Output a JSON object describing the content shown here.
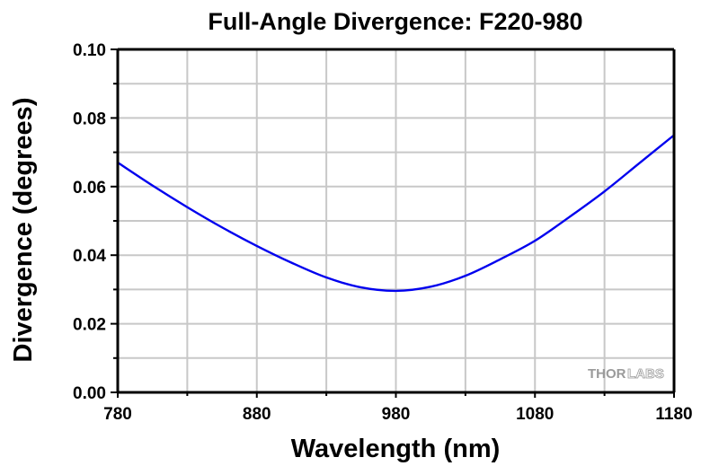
{
  "chart_data": {
    "type": "line",
    "title": "Full-Angle Divergence: F220-980",
    "xlabel": "Wavelength (nm)",
    "ylabel": "Divergence (degrees)",
    "xlim": [
      780,
      1180
    ],
    "ylim": [
      0.0,
      0.1
    ],
    "xticks": [
      780,
      880,
      980,
      1080,
      1180
    ],
    "xtick_labels": [
      "780",
      "880",
      "980",
      "1080",
      "1180"
    ],
    "x_minor_ticks": [
      830,
      930,
      1030,
      1130
    ],
    "yticks": [
      0.0,
      0.02,
      0.04,
      0.06,
      0.08,
      0.1
    ],
    "ytick_labels": [
      "0.00",
      "0.02",
      "0.04",
      "0.06",
      "0.08",
      "0.10"
    ],
    "y_minor_ticks": [
      0.01,
      0.03,
      0.05,
      0.07,
      0.09
    ],
    "grid": true,
    "legend": "none",
    "series": [
      {
        "name": "Full-Angle Divergence",
        "color": "#0000ee",
        "x": [
          780,
          805,
          830,
          855,
          880,
          905,
          930,
          955,
          980,
          1005,
          1030,
          1055,
          1080,
          1105,
          1130,
          1155,
          1180
        ],
        "y": [
          0.067,
          0.0603,
          0.054,
          0.0481,
          0.0427,
          0.0378,
          0.0335,
          0.0306,
          0.0296,
          0.0308,
          0.034,
          0.0388,
          0.0442,
          0.0512,
          0.0586,
          0.0668,
          0.075
        ]
      }
    ]
  },
  "watermark": {
    "part1": "THOR",
    "part2": "LABS"
  },
  "colors": {
    "grid": "#c8c8c8",
    "axis": "#000000",
    "line": "#0000ee"
  }
}
